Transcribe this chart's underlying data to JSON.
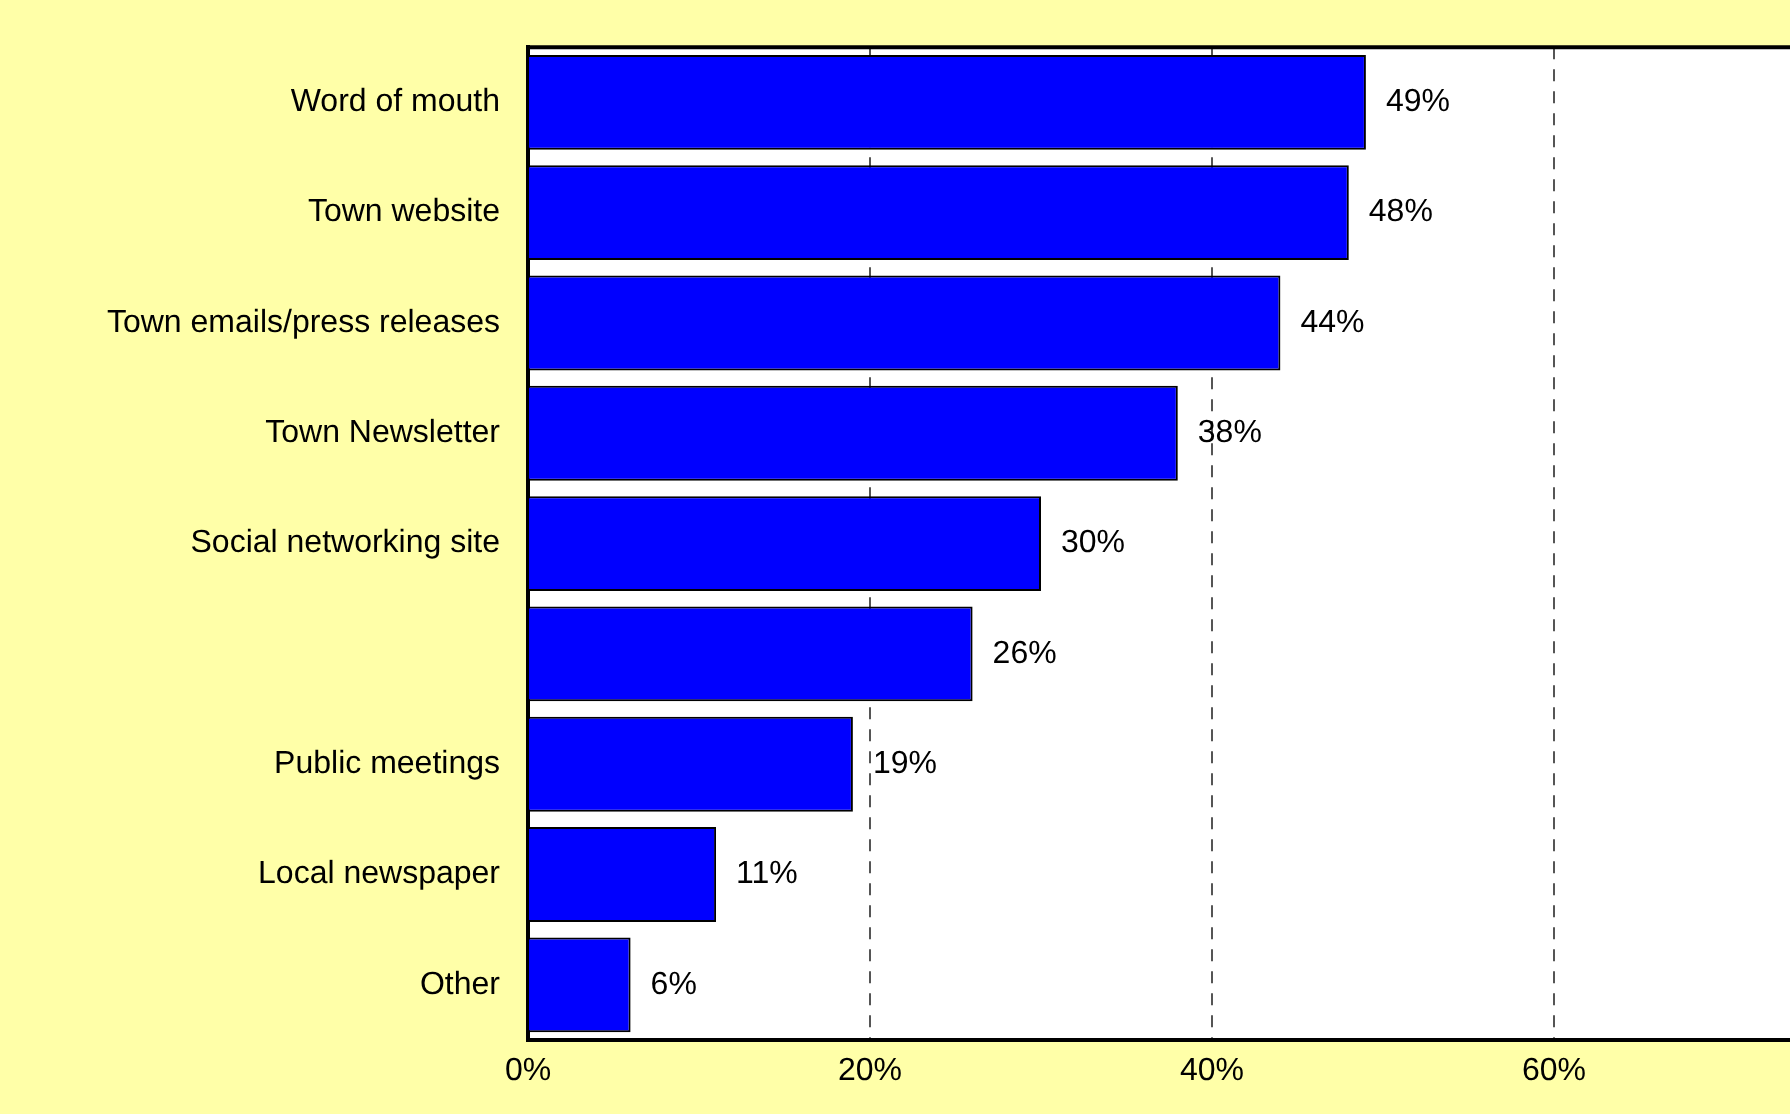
{
  "chart_data": {
    "type": "bar",
    "orientation": "horizontal",
    "categories": [
      "Word of mouth",
      "Town website",
      "Town emails/press releases",
      "Town Newsletter",
      "Social networking site",
      null,
      "Public meetings",
      "Local newspaper",
      "Other"
    ],
    "values": [
      49,
      48,
      44,
      38,
      30,
      26,
      19,
      11,
      6
    ],
    "value_labels": [
      "49%",
      "48%",
      "44%",
      "38%",
      "30%",
      "26%",
      "19%",
      "11%",
      "6%"
    ],
    "color": "#0000ff",
    "xlim": [
      0,
      73.8
    ],
    "xticks": [
      {
        "value": 0,
        "label": "0%"
      },
      {
        "value": 20,
        "label": "20%"
      },
      {
        "value": 40,
        "label": "40%"
      },
      {
        "value": 60,
        "label": "60%"
      }
    ],
    "grid": "x",
    "legend": false
  }
}
